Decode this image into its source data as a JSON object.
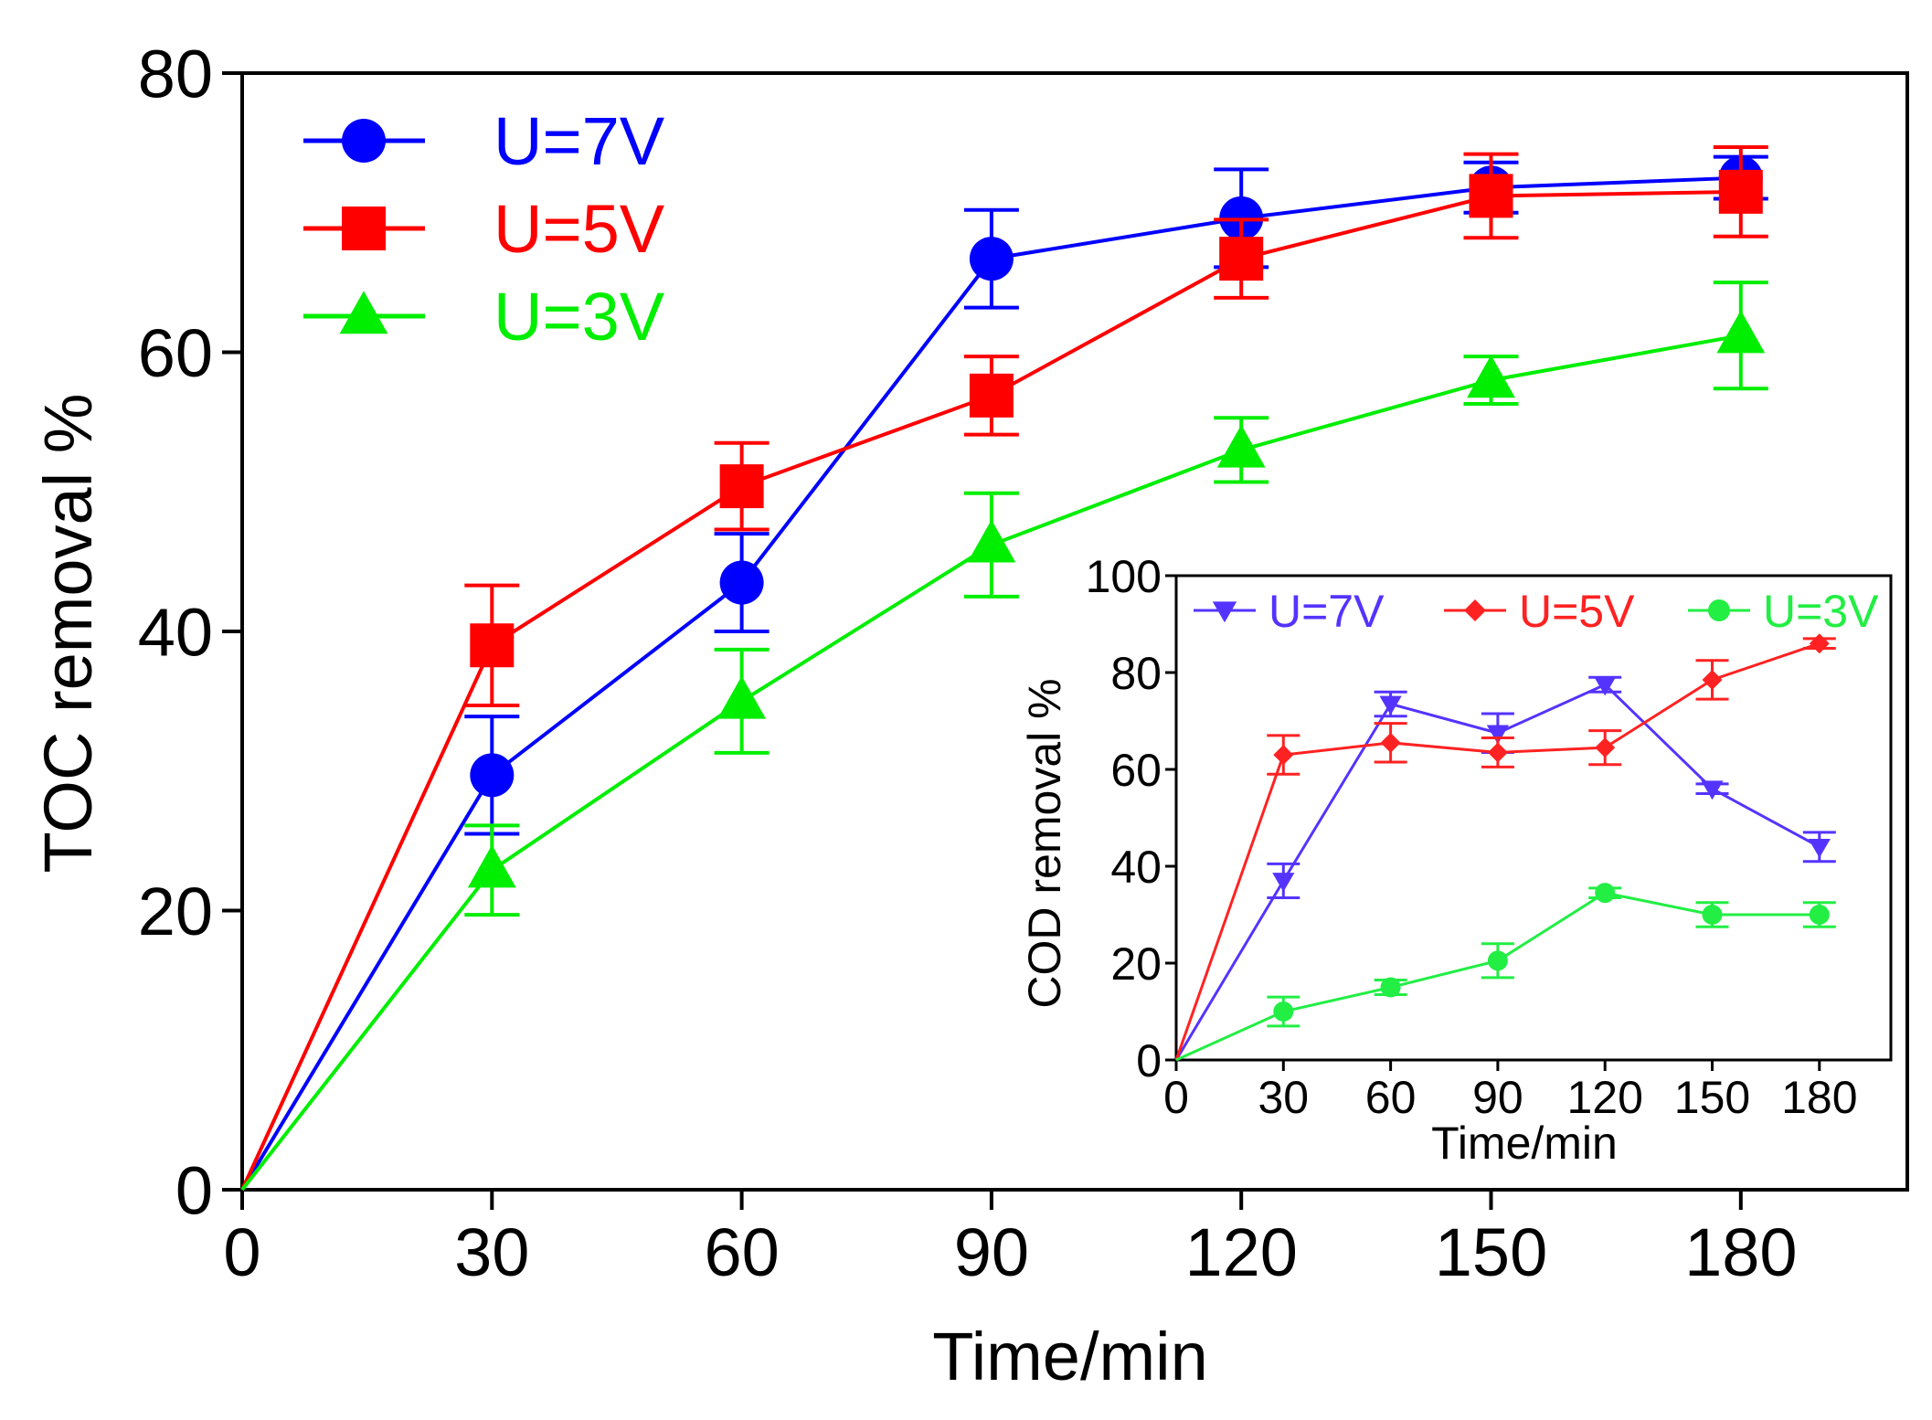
{
  "chart_data": [
    {
      "type": "line",
      "title": "",
      "xlabel": "Time/min",
      "ylabel": "TOC removal %",
      "xlim": [
        0,
        200
      ],
      "ylim": [
        0,
        80
      ],
      "x_ticks": [
        0,
        30,
        60,
        90,
        120,
        150,
        180
      ],
      "y_ticks": [
        0,
        20,
        40,
        60,
        80
      ],
      "x_tick_labels": [
        "0",
        "30",
        "60",
        "90",
        "120",
        "150",
        "180"
      ],
      "y_tick_labels": [
        "0",
        "20",
        "40",
        "60",
        "80"
      ],
      "legend_position": "top-left",
      "x": [
        0,
        30,
        60,
        90,
        120,
        150,
        180
      ],
      "series": [
        {
          "name": "U=7V",
          "color": "#0000ff",
          "marker": "circle",
          "values": [
            0,
            29.7,
            43.5,
            66.7,
            69.6,
            71.8,
            72.5
          ],
          "errors": [
            0,
            4.2,
            3.5,
            3.5,
            3.5,
            1.8,
            1.5
          ]
        },
        {
          "name": "U=5V",
          "color": "#ff0000",
          "marker": "square",
          "values": [
            0,
            39.0,
            50.4,
            56.9,
            66.7,
            71.2,
            71.5
          ],
          "errors": [
            0,
            4.3,
            3.1,
            2.8,
            2.8,
            3.0,
            3.2
          ]
        },
        {
          "name": "U=3V",
          "color": "#00ee00",
          "marker": "triangle-up",
          "values": [
            0,
            22.9,
            35.0,
            46.2,
            53.0,
            58.0,
            61.2
          ],
          "errors": [
            0,
            3.2,
            3.7,
            3.7,
            2.3,
            1.7,
            3.8
          ]
        }
      ]
    },
    {
      "type": "line",
      "title": "",
      "xlabel": "Time/min",
      "ylabel": "COD removal %",
      "xlim": [
        0,
        200
      ],
      "ylim": [
        0,
        100
      ],
      "x_ticks": [
        0,
        30,
        60,
        90,
        120,
        150,
        180
      ],
      "y_ticks": [
        0,
        20,
        40,
        60,
        80,
        100
      ],
      "x_tick_labels": [
        "0",
        "30",
        "60",
        "90",
        "120",
        "150",
        "180"
      ],
      "y_tick_labels": [
        "0",
        "20",
        "40",
        "60",
        "80",
        "100"
      ],
      "legend_position": "top",
      "x": [
        0,
        30,
        60,
        90,
        120,
        150,
        180
      ],
      "series": [
        {
          "name": "U=7V",
          "color": "#5533ff",
          "marker": "triangle-down",
          "values": [
            0,
            37.0,
            73.5,
            67.5,
            77.5,
            56.0,
            44.0
          ],
          "errors": [
            0,
            3.5,
            2.5,
            4.0,
            1.5,
            1.0,
            3.0
          ]
        },
        {
          "name": "U=5V",
          "color": "#ff2222",
          "marker": "diamond",
          "values": [
            0,
            63.0,
            65.5,
            63.5,
            64.5,
            78.5,
            86.0
          ],
          "errors": [
            0,
            4.0,
            4.0,
            3.0,
            3.5,
            4.0,
            1.0
          ]
        },
        {
          "name": "U=3V",
          "color": "#22ee44",
          "marker": "circle",
          "values": [
            0,
            10.0,
            15.0,
            20.5,
            34.5,
            30.0,
            30.0
          ],
          "errors": [
            0,
            3.0,
            1.5,
            3.5,
            1.0,
            2.5,
            2.5
          ]
        }
      ]
    }
  ]
}
